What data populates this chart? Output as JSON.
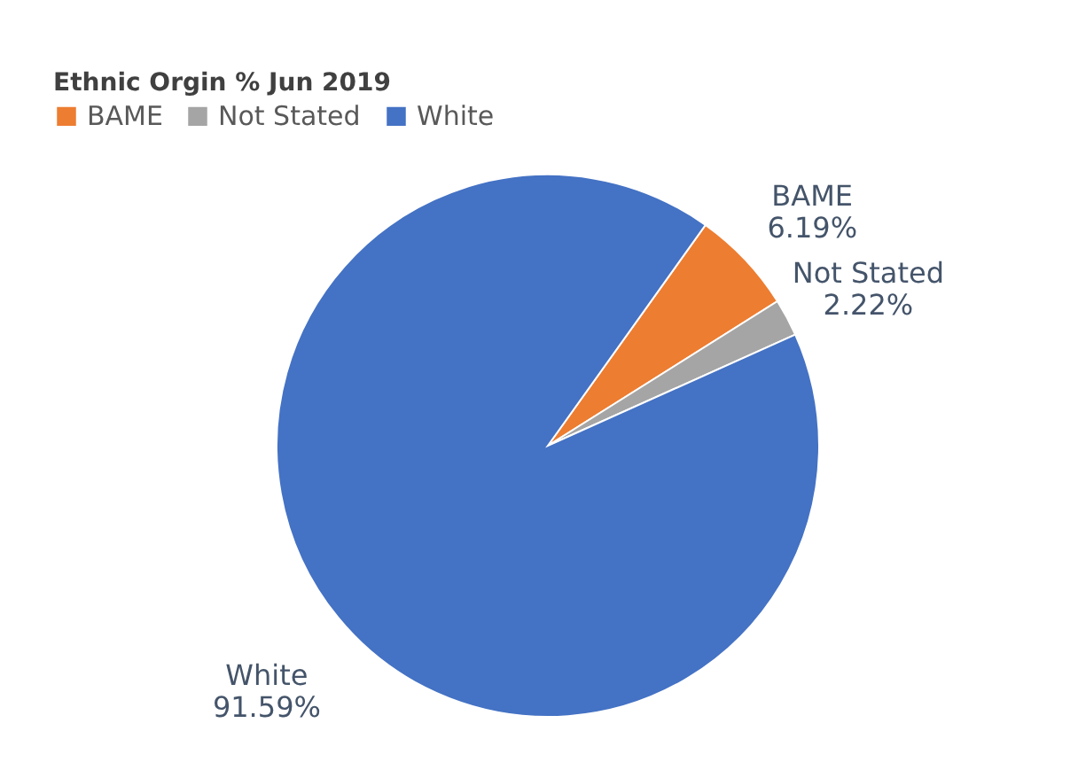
{
  "chart_data": {
    "type": "pie",
    "title": "Ethnic Orgin % Jun 2019",
    "categories": [
      "BAME",
      "Not Stated",
      "White"
    ],
    "values": [
      6.19,
      2.22,
      91.59
    ],
    "colors": [
      "#ed7d31",
      "#a5a5a5",
      "#4472c4"
    ],
    "value_labels": [
      "6.19%",
      "2.22%",
      "91.59%"
    ],
    "legend": "top left"
  }
}
